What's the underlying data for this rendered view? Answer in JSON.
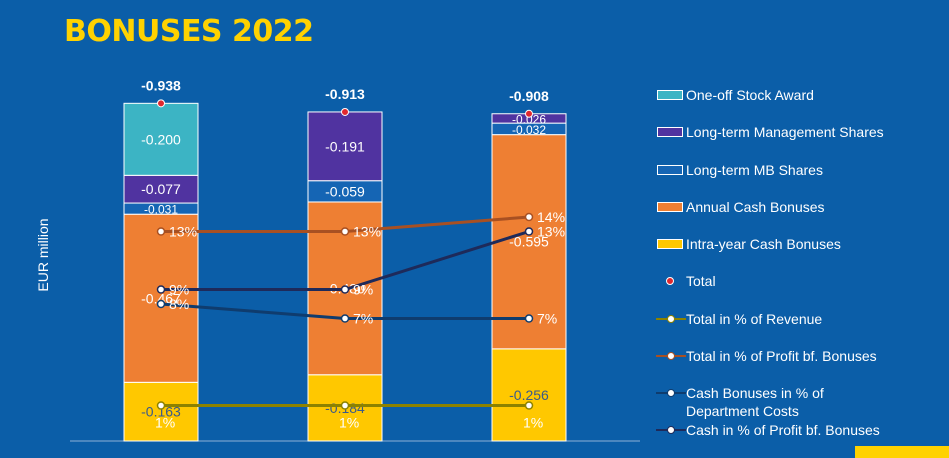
{
  "chart_data": {
    "type": "bar",
    "title": "BONUSES 2022",
    "ylabel": "EUR million",
    "x": [
      "",
      "",
      ""
    ],
    "stacks": [
      {
        "name": "Intra-year Cash Bonuses",
        "color": "#ffc800",
        "values": [
          -0.163,
          -0.184,
          -0.256
        ],
        "labels": [
          "-0.163",
          "-0.184",
          "-0.256"
        ]
      },
      {
        "name": "Annual Cash Bonuses",
        "color": "#ee7f33",
        "values": [
          -0.467,
          -0.48,
          -0.595
        ],
        "labels": [
          "-0.467",
          "-0.480",
          "-0.595"
        ]
      },
      {
        "name": "Long-term MB Shares",
        "color": "#1565b4",
        "values": [
          -0.031,
          -0.059,
          -0.032
        ],
        "labels": [
          "-0.031",
          "-0.059",
          "-0.032"
        ]
      },
      {
        "name": "Long-term Management Shares",
        "color": "#5033a0",
        "values": [
          -0.077,
          -0.191,
          -0.026
        ],
        "labels": [
          "-0.077",
          "-0.191",
          "-0.026"
        ]
      },
      {
        "name": "One-off Stock Award",
        "color": "#3cb4c4",
        "values": [
          -0.2,
          0,
          0
        ],
        "labels": [
          "-0.200",
          "",
          ""
        ]
      }
    ],
    "totals": {
      "name": "Total",
      "values": [
        -0.938,
        -0.913,
        -0.908
      ],
      "labels": [
        "-0.938",
        "-0.913",
        "-0.908"
      ]
    },
    "lines": [
      {
        "name": "Total in % of Revenue",
        "color": "#8c8200",
        "values": [
          1,
          1,
          1
        ],
        "labels": [
          "1%",
          "1%",
          "1%"
        ]
      },
      {
        "name": "Total in % of Profit bf. Bonuses",
        "color": "#a85022",
        "values": [
          13,
          13,
          14
        ],
        "labels": [
          "13%",
          "13%",
          "14%"
        ]
      },
      {
        "name": "Cash Bonuses in % of\nDepartment Costs",
        "color": "#0f3c6e",
        "values": [
          8,
          7,
          7
        ],
        "labels": [
          "8%",
          "7%",
          "7%"
        ]
      },
      {
        "name": "Cash in % of Profit bf. Bonuses",
        "color": "#1e2a5a",
        "values": [
          9,
          9,
          13
        ],
        "labels": [
          "9%",
          "9%",
          "13%"
        ]
      }
    ],
    "legend_position": "right",
    "grid": false
  }
}
